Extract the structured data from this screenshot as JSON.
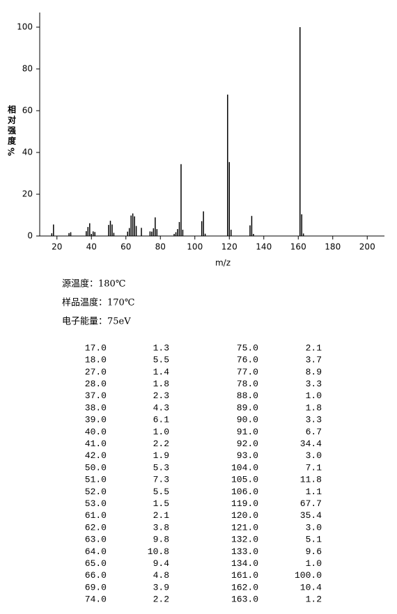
{
  "chart_data": {
    "type": "bar",
    "xlabel": "m/z",
    "ylabel": [
      "相",
      "对",
      "强",
      "度",
      "%"
    ],
    "x": [
      17,
      18,
      27,
      28,
      37,
      38,
      39,
      40,
      41,
      42,
      50,
      51,
      52,
      53,
      61,
      62,
      63,
      64,
      65,
      66,
      69,
      74,
      75,
      76,
      77,
      78,
      88,
      89,
      90,
      91,
      92,
      93,
      104,
      105,
      106,
      119,
      120,
      121,
      132,
      133,
      134,
      161,
      162,
      163
    ],
    "values": [
      1.3,
      5.5,
      1.4,
      1.8,
      2.3,
      4.3,
      6.1,
      1.0,
      2.2,
      1.9,
      5.3,
      7.3,
      5.5,
      1.5,
      2.1,
      3.8,
      9.8,
      10.8,
      9.4,
      4.8,
      3.9,
      2.2,
      2.1,
      3.7,
      8.9,
      3.3,
      1.0,
      1.8,
      3.3,
      6.7,
      34.4,
      3.0,
      7.1,
      11.8,
      1.1,
      67.7,
      35.4,
      3.0,
      5.1,
      9.6,
      1.0,
      100.0,
      10.4,
      1.2
    ],
    "color": "#000000",
    "xlim": [
      10,
      210
    ],
    "xticks": [
      20,
      40,
      60,
      80,
      100,
      120,
      140,
      160,
      180,
      200
    ],
    "ylim": [
      0,
      107
    ],
    "yticks": [
      0,
      20,
      40,
      60,
      80,
      100
    ]
  },
  "conditions": [
    "源温度：180℃",
    "样品温度：170℃",
    "电子能量：75eV"
  ],
  "table": {
    "rows": [
      [
        "17.0",
        "1.3",
        "75.0",
        "2.1"
      ],
      [
        "18.0",
        "5.5",
        "76.0",
        "3.7"
      ],
      [
        "27.0",
        "1.4",
        "77.0",
        "8.9"
      ],
      [
        "28.0",
        "1.8",
        "78.0",
        "3.3"
      ],
      [
        "37.0",
        "2.3",
        "88.0",
        "1.0"
      ],
      [
        "38.0",
        "4.3",
        "89.0",
        "1.8"
      ],
      [
        "39.0",
        "6.1",
        "90.0",
        "3.3"
      ],
      [
        "40.0",
        "1.0",
        "91.0",
        "6.7"
      ],
      [
        "41.0",
        "2.2",
        "92.0",
        "34.4"
      ],
      [
        "42.0",
        "1.9",
        "93.0",
        "3.0"
      ],
      [
        "50.0",
        "5.3",
        "104.0",
        "7.1"
      ],
      [
        "51.0",
        "7.3",
        "105.0",
        "11.8"
      ],
      [
        "52.0",
        "5.5",
        "106.0",
        "1.1"
      ],
      [
        "53.0",
        "1.5",
        "119.0",
        "67.7"
      ],
      [
        "61.0",
        "2.1",
        "120.0",
        "35.4"
      ],
      [
        "62.0",
        "3.8",
        "121.0",
        "3.0"
      ],
      [
        "63.0",
        "9.8",
        "132.0",
        "5.1"
      ],
      [
        "64.0",
        "10.8",
        "133.0",
        "9.6"
      ],
      [
        "65.0",
        "9.4",
        "134.0",
        "1.0"
      ],
      [
        "66.0",
        "4.8",
        "161.0",
        "100.0"
      ],
      [
        "69.0",
        "3.9",
        "162.0",
        "10.4"
      ],
      [
        "74.0",
        "2.2",
        "163.0",
        "1.2"
      ]
    ]
  }
}
